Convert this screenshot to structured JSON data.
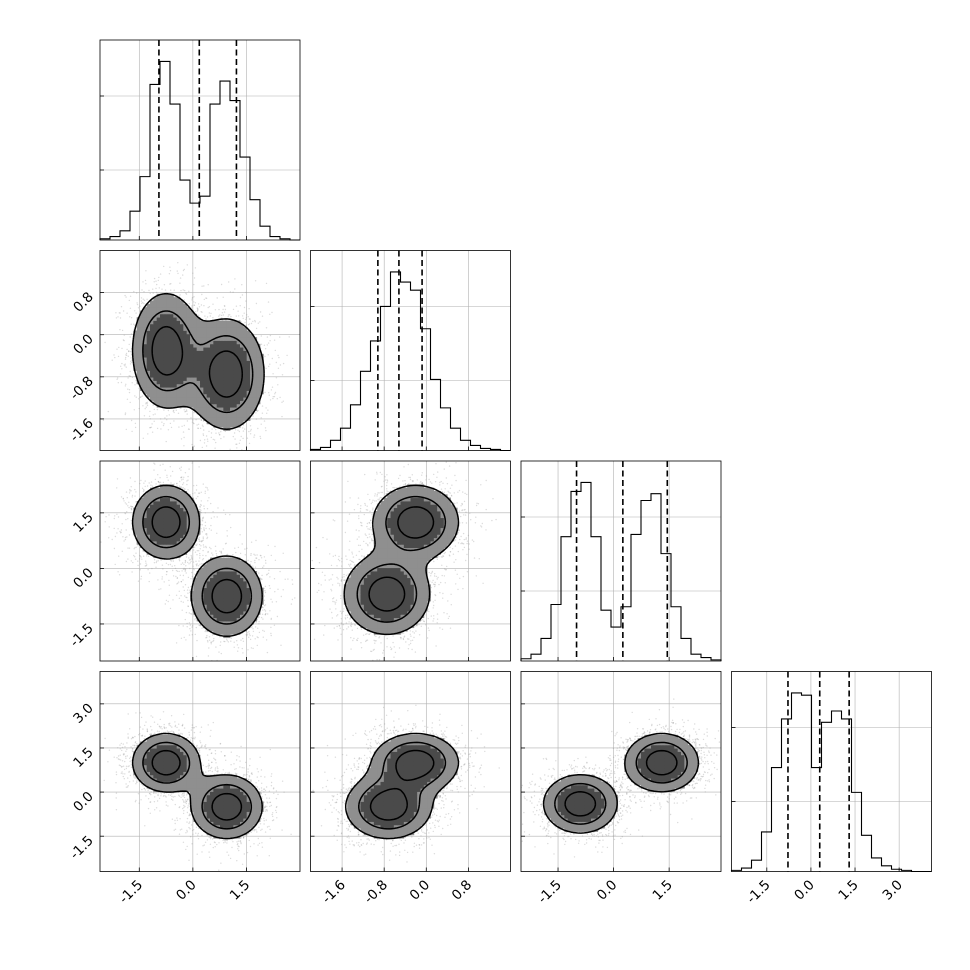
{
  "chart_data": {
    "type": "corner",
    "dims": 4,
    "hist_bins": 20,
    "quantile_style": "dashed",
    "grid": true,
    "colors": {
      "ink": "#000000",
      "grid": "#b0b0b0",
      "points": "#999999"
    },
    "ranges": [
      [
        -2.6,
        3.0
      ],
      [
        -2.2,
        1.6
      ],
      [
        -2.5,
        2.9
      ],
      [
        -2.7,
        4.1
      ]
    ],
    "ticks": [
      [
        "-1.5",
        "0.0",
        "1.5"
      ],
      [
        "-1.6",
        "-0.8",
        "0.0",
        "0.8"
      ],
      [
        "-1.5",
        "0.0",
        "1.5"
      ],
      [
        "-1.5",
        "0.0",
        "1.5",
        "3.0"
      ]
    ],
    "tick_values": [
      [
        -1.5,
        0.0,
        1.5
      ],
      [
        -1.6,
        -0.8,
        0.0,
        0.8
      ],
      [
        -1.5,
        0.0,
        1.5
      ],
      [
        -1.5,
        0.0,
        1.5,
        3.0
      ]
    ],
    "histograms": [
      {
        "dim": 0,
        "bin_edges": [
          -2.6,
          -2.32,
          -2.04,
          -1.76,
          -1.48,
          -1.2,
          -0.92,
          -0.64,
          -0.36,
          -0.08,
          0.2,
          0.48,
          0.76,
          1.04,
          1.32,
          1.6,
          1.88,
          2.16,
          2.44,
          2.72,
          3.0
        ],
        "counts": [
          1,
          3,
          8,
          25,
          55,
          135,
          155,
          118,
          52,
          32,
          38,
          118,
          138,
          121,
          72,
          35,
          12,
          3,
          1,
          0
        ],
        "quantiles": [
          -0.95,
          0.18,
          1.22
        ]
      },
      {
        "dim": 1,
        "bin_edges": [
          -2.2,
          -2.01,
          -1.82,
          -1.63,
          -1.44,
          -1.25,
          -1.06,
          -0.87,
          -0.68,
          -0.49,
          -0.3,
          -0.11,
          0.08,
          0.27,
          0.46,
          0.65,
          0.84,
          1.03,
          1.22,
          1.41,
          1.6
        ],
        "counts": [
          1,
          3,
          10,
          22,
          45,
          78,
          108,
          142,
          176,
          166,
          158,
          120,
          70,
          42,
          22,
          10,
          5,
          2,
          1,
          0
        ],
        "quantiles": [
          -0.92,
          -0.52,
          -0.08
        ]
      },
      {
        "dim": 2,
        "bin_edges": [
          -2.5,
          -2.23,
          -1.96,
          -1.69,
          -1.42,
          -1.15,
          -0.88,
          -0.61,
          -0.34,
          -0.07,
          0.2,
          0.47,
          0.74,
          1.01,
          1.28,
          1.55,
          1.82,
          2.09,
          2.36,
          2.63,
          2.9
        ],
        "counts": [
          2,
          6,
          20,
          50,
          110,
          150,
          158,
          110,
          45,
          30,
          48,
          112,
          142,
          148,
          95,
          48,
          20,
          6,
          3,
          1
        ],
        "quantiles": [
          -1.0,
          0.25,
          1.45
        ]
      },
      {
        "dim": 3,
        "bin_edges": [
          -2.7,
          -2.36,
          -2.02,
          -1.68,
          -1.34,
          -1.0,
          -0.66,
          -0.32,
          0.02,
          0.36,
          0.7,
          1.04,
          1.38,
          1.72,
          2.06,
          2.4,
          2.74,
          3.08,
          3.42,
          3.76,
          4.1
        ],
        "counts": [
          1,
          3,
          10,
          35,
          92,
          135,
          158,
          156,
          92,
          132,
          142,
          135,
          70,
          32,
          12,
          5,
          2,
          1,
          0,
          0
        ],
        "quantiles": [
          -0.78,
          0.3,
          1.3
        ]
      }
    ],
    "blobs": [
      {
        "x": 0,
        "y": 1,
        "modes": [
          {
            "cx": -0.75,
            "cy": -0.3,
            "sx": 0.52,
            "sy": 0.6,
            "rho": 0.0
          },
          {
            "cx": 0.95,
            "cy": -0.75,
            "sx": 0.58,
            "sy": 0.58,
            "rho": 0.0
          }
        ]
      },
      {
        "x": 0,
        "y": 2,
        "modes": [
          {
            "cx": -0.75,
            "cy": 1.25,
            "sx": 0.52,
            "sy": 0.55,
            "rho": 0.0
          },
          {
            "cx": 0.95,
            "cy": -0.75,
            "sx": 0.55,
            "sy": 0.6,
            "rho": 0.0
          }
        ]
      },
      {
        "x": 1,
        "y": 2,
        "modes": [
          {
            "cx": -0.2,
            "cy": 1.25,
            "sx": 0.45,
            "sy": 0.55,
            "rho": 0.0
          },
          {
            "cx": -0.75,
            "cy": -0.7,
            "sx": 0.45,
            "sy": 0.6,
            "rho": 0.0
          }
        ]
      },
      {
        "x": 0,
        "y": 3,
        "modes": [
          {
            "cx": -0.75,
            "cy": 1.0,
            "sx": 0.52,
            "sy": 0.55,
            "rho": 0.0
          },
          {
            "cx": 0.95,
            "cy": -0.5,
            "sx": 0.55,
            "sy": 0.6,
            "rho": 0.0
          }
        ]
      },
      {
        "x": 1,
        "y": 3,
        "modes": [
          {
            "cx": -0.2,
            "cy": 1.0,
            "sx": 0.45,
            "sy": 0.55,
            "rho": 0.0
          },
          {
            "cx": -0.72,
            "cy": -0.5,
            "sx": 0.45,
            "sy": 0.6,
            "rho": 0.0
          }
        ]
      },
      {
        "x": 2,
        "y": 3,
        "modes": [
          {
            "cx": -0.9,
            "cy": -0.4,
            "sx": 0.55,
            "sy": 0.55,
            "rho": 0.0
          },
          {
            "cx": 1.3,
            "cy": 1.0,
            "sx": 0.55,
            "sy": 0.55,
            "rho": 0.0
          }
        ]
      }
    ],
    "contour_levels_sigma": [
      0.75,
      1.25,
      1.8
    ],
    "points_per_mode": 1600
  }
}
